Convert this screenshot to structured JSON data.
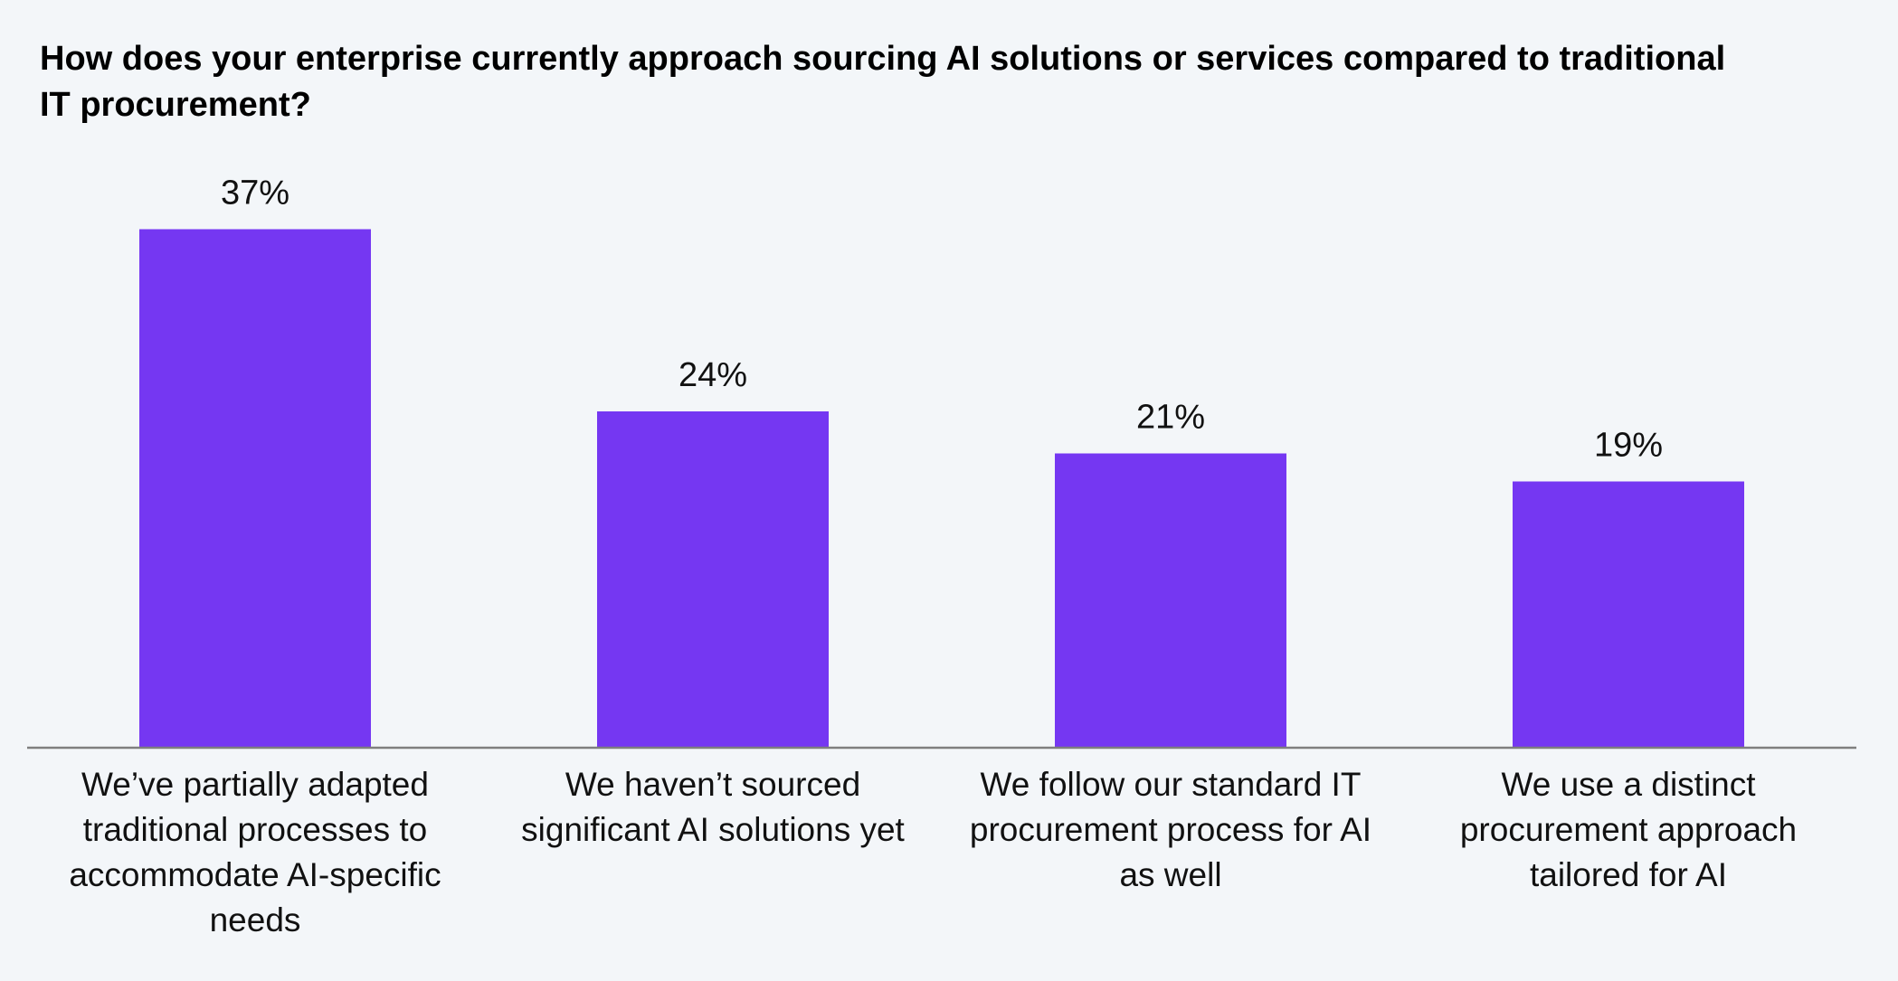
{
  "chart_data": {
    "type": "bar",
    "title": "How does your enterprise currently approach sourcing AI solutions or services compared to traditional IT procurement?",
    "categories": [
      "We’ve partially adapted traditional processes to accommodate AI-specific needs",
      "We haven’t sourced significant AI solutions yet",
      "We follow our standard IT procurement process for AI as well",
      "We use a distinct procurement approach tailored for AI"
    ],
    "category_lines": [
      [
        "We’ve partially adapted",
        "traditional processes to",
        "accommodate AI-specific",
        "needs"
      ],
      [
        "We haven’t sourced",
        "significant AI solutions yet"
      ],
      [
        "We follow our standard IT",
        "procurement process for AI",
        "as well"
      ],
      [
        "We use a distinct",
        "procurement approach",
        "tailored for AI"
      ]
    ],
    "values": [
      37,
      24,
      21,
      19
    ],
    "value_labels": [
      "37%",
      "24%",
      "21%",
      "19%"
    ],
    "ylim": [
      0,
      40
    ],
    "xlabel": "",
    "ylabel": "",
    "grid": false,
    "legend": "none",
    "colors": {
      "bar": "#7537f2",
      "axis": "#7f7f7f",
      "background": "#f3f6f9",
      "text": "#111111"
    }
  }
}
